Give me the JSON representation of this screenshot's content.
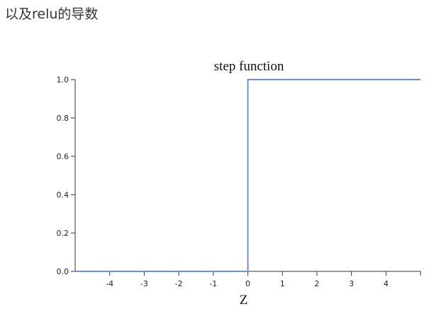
{
  "page": {
    "heading": "以及relu的导数"
  },
  "chart_data": {
    "type": "line",
    "title": "step function",
    "xlabel": "Z",
    "ylabel": "",
    "xlim": [
      -5,
      5
    ],
    "ylim": [
      0,
      1
    ],
    "x_ticks": [
      -4,
      -3,
      -2,
      -1,
      0,
      1,
      2,
      3,
      4
    ],
    "x_tick_labels": [
      "-4",
      "-3",
      "-2",
      "-1",
      "0",
      "1",
      "2",
      "3",
      "4"
    ],
    "y_ticks": [
      0,
      0.2,
      0.4,
      0.6,
      0.8,
      1.0
    ],
    "y_tick_labels": [
      "0.0",
      "0.2",
      "0.4",
      "0.6",
      "0.8",
      "1.0"
    ],
    "grid": false,
    "series": [
      {
        "color": "#6f93c8",
        "x": [
          -5,
          0,
          0,
          5
        ],
        "y": [
          0,
          0,
          1,
          1
        ]
      }
    ]
  }
}
